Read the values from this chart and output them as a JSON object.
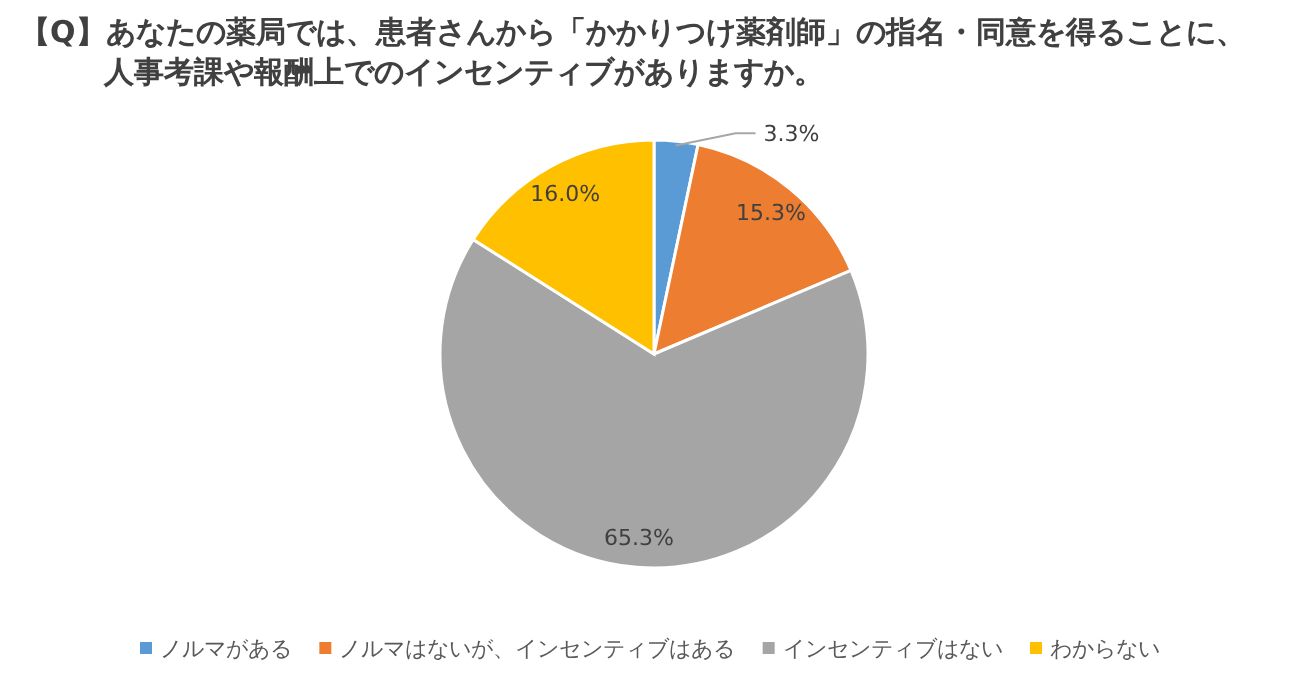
{
  "chart_data": {
    "type": "pie",
    "title": "【Q】あなたの薬局では、患者さんから「かかりつけ薬剤師」の指名・同意を得ることに、人事考課や報酬上でのインセンティブがありますか。",
    "categories": [
      "ノルマがある",
      "ノルマはないが、インセンティブはある",
      "インセンティブはない",
      "わからない"
    ],
    "values": [
      3.3,
      15.3,
      65.3,
      16.0
    ],
    "value_labels": [
      "3.3%",
      "15.3%",
      "65.3%",
      "16.0%"
    ],
    "colors": [
      "#5b9bd5",
      "#ed7d31",
      "#a5a5a5",
      "#ffc000"
    ],
    "legend": "bottom"
  }
}
